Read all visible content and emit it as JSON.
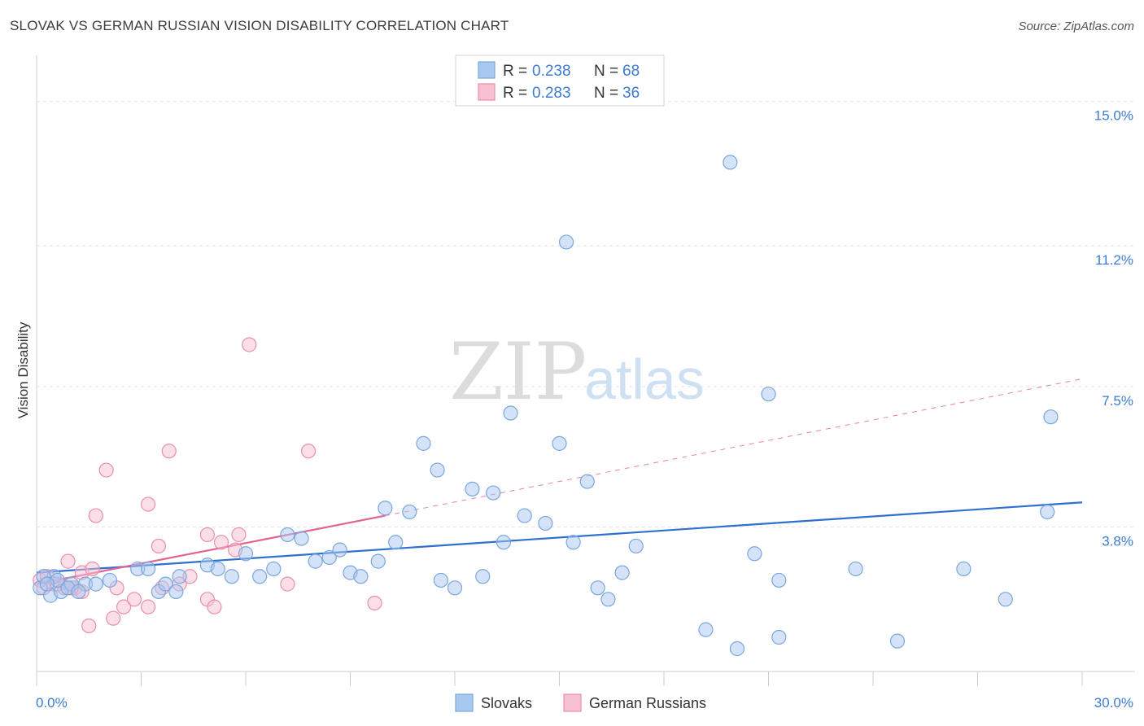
{
  "header": {
    "title": "SLOVAK VS GERMAN RUSSIAN VISION DISABILITY CORRELATION CHART",
    "source": "Source: ZipAtlas.com"
  },
  "watermark": {
    "zip": "ZIP",
    "atlas": "atlas"
  },
  "legend": {
    "rows": [
      {
        "r_label": "R = ",
        "r_value": "0.238",
        "n_label": "N = ",
        "n_value": "68",
        "color": "#a9c8ef"
      },
      {
        "r_label": "R = ",
        "r_value": "0.283",
        "n_label": "N = ",
        "n_value": "36",
        "color": "#f7b6c9"
      }
    ]
  },
  "colors": {
    "blue_fill": "#a9c8ef",
    "blue_stroke": "#7ba6dd",
    "blue_line": "#2f6fcf",
    "pink_fill": "#f7c0d1",
    "pink_stroke": "#ea8fab",
    "pink_line": "#e06593",
    "grid": "#e3e3e3",
    "axis_label": "#3d7bd0"
  },
  "chart_data": {
    "type": "scatter",
    "title": "SLOVAK VS GERMAN RUSSIAN VISION DISABILITY CORRELATION CHART",
    "xlabel": "",
    "ylabel": "Vision Disability",
    "xlim": [
      0,
      30
    ],
    "ylim": [
      0,
      16
    ],
    "x_tick_labels": [
      "0.0%",
      "30.0%"
    ],
    "y_ticks": [
      3.8,
      7.5,
      11.2,
      15.0
    ],
    "y_tick_labels": [
      "3.8%",
      "7.5%",
      "11.2%",
      "15.0%"
    ],
    "grid": true,
    "legend_position": "top-center",
    "series": [
      {
        "name": "Slovaks",
        "color": "#a9c8ef",
        "trend": {
          "x": [
            0,
            30
          ],
          "y": [
            2.6,
            4.45
          ],
          "style": "solid"
        },
        "points": [
          [
            0.1,
            2.2
          ],
          [
            0.4,
            2.0
          ],
          [
            0.5,
            2.5
          ],
          [
            0.7,
            2.1
          ],
          [
            1.0,
            2.3
          ],
          [
            1.4,
            2.3
          ],
          [
            1.7,
            2.3
          ],
          [
            2.1,
            2.4
          ],
          [
            2.9,
            2.7
          ],
          [
            3.2,
            2.7
          ],
          [
            3.5,
            2.1
          ],
          [
            3.7,
            2.3
          ],
          [
            4.0,
            2.1
          ],
          [
            4.1,
            2.5
          ],
          [
            4.9,
            2.8
          ],
          [
            5.2,
            2.7
          ],
          [
            5.6,
            2.5
          ],
          [
            6.0,
            3.1
          ],
          [
            6.4,
            2.5
          ],
          [
            6.8,
            2.7
          ],
          [
            7.2,
            3.6
          ],
          [
            7.6,
            3.5
          ],
          [
            8.0,
            2.9
          ],
          [
            8.4,
            3.0
          ],
          [
            8.7,
            3.2
          ],
          [
            9.0,
            2.6
          ],
          [
            9.3,
            2.5
          ],
          [
            9.8,
            2.9
          ],
          [
            10.0,
            4.3
          ],
          [
            10.3,
            3.4
          ],
          [
            10.7,
            4.2
          ],
          [
            11.1,
            6.0
          ],
          [
            11.5,
            5.3
          ],
          [
            11.6,
            2.4
          ],
          [
            12.0,
            2.2
          ],
          [
            12.5,
            4.8
          ],
          [
            12.8,
            2.5
          ],
          [
            13.1,
            4.7
          ],
          [
            13.4,
            3.4
          ],
          [
            13.6,
            6.8
          ],
          [
            14.0,
            4.1
          ],
          [
            14.6,
            3.9
          ],
          [
            15.0,
            6.0
          ],
          [
            15.2,
            11.3
          ],
          [
            15.4,
            3.4
          ],
          [
            15.8,
            5.0
          ],
          [
            16.1,
            2.2
          ],
          [
            16.4,
            1.9
          ],
          [
            16.8,
            2.6
          ],
          [
            17.2,
            3.3
          ],
          [
            19.2,
            1.1
          ],
          [
            19.9,
            13.4
          ],
          [
            20.1,
            0.6
          ],
          [
            20.6,
            3.1
          ],
          [
            21.0,
            7.3
          ],
          [
            21.3,
            2.4
          ],
          [
            21.3,
            0.9
          ],
          [
            23.5,
            2.7
          ],
          [
            24.7,
            0.8
          ],
          [
            26.6,
            2.7
          ],
          [
            27.8,
            1.9
          ],
          [
            29.0,
            4.2
          ],
          [
            29.1,
            6.7
          ],
          [
            0.2,
            2.5
          ],
          [
            0.6,
            2.4
          ],
          [
            0.9,
            2.2
          ],
          [
            1.2,
            2.1
          ],
          [
            0.3,
            2.3
          ]
        ]
      },
      {
        "name": "German Russians",
        "color": "#f7c0d1",
        "trend": {
          "x": [
            0,
            10
          ],
          "y": [
            2.3,
            4.1
          ],
          "style": "solid"
        },
        "trend_extension": {
          "x": [
            10,
            30
          ],
          "y": [
            4.1,
            7.7
          ],
          "style": "dashed"
        },
        "points": [
          [
            0.1,
            2.4
          ],
          [
            0.3,
            2.5
          ],
          [
            0.5,
            2.3
          ],
          [
            0.8,
            2.2
          ],
          [
            0.9,
            2.9
          ],
          [
            1.1,
            2.2
          ],
          [
            1.3,
            2.1
          ],
          [
            1.3,
            2.6
          ],
          [
            1.5,
            1.2
          ],
          [
            1.6,
            2.7
          ],
          [
            1.7,
            4.1
          ],
          [
            2.0,
            5.3
          ],
          [
            2.2,
            1.4
          ],
          [
            2.3,
            2.2
          ],
          [
            2.5,
            1.7
          ],
          [
            2.8,
            1.9
          ],
          [
            3.2,
            1.7
          ],
          [
            3.2,
            4.4
          ],
          [
            3.5,
            3.3
          ],
          [
            3.6,
            2.2
          ],
          [
            3.8,
            5.8
          ],
          [
            4.1,
            2.3
          ],
          [
            4.4,
            2.5
          ],
          [
            4.9,
            1.9
          ],
          [
            4.9,
            3.6
          ],
          [
            5.1,
            1.7
          ],
          [
            5.3,
            3.4
          ],
          [
            5.7,
            3.2
          ],
          [
            5.8,
            3.6
          ],
          [
            6.1,
            8.6
          ],
          [
            7.2,
            2.3
          ],
          [
            7.8,
            5.8
          ],
          [
            9.7,
            1.8
          ],
          [
            0.6,
            2.3
          ],
          [
            1.0,
            2.2
          ],
          [
            0.2,
            2.2
          ]
        ]
      }
    ]
  },
  "bottom_legend": [
    {
      "label": "Slovaks",
      "color": "#a9c8ef"
    },
    {
      "label": "German Russians",
      "color": "#f7c0d1"
    }
  ]
}
